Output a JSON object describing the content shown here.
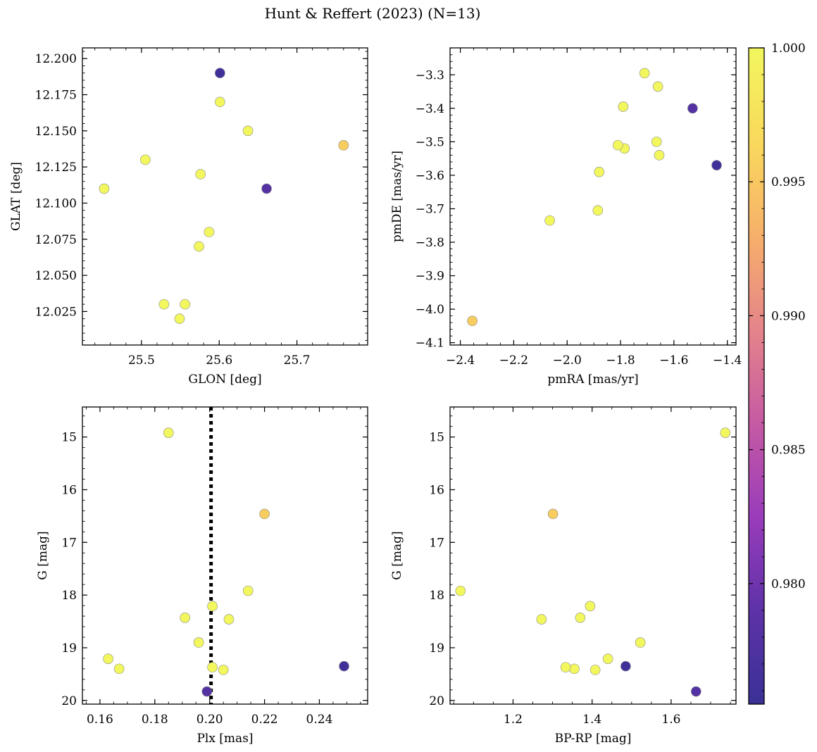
{
  "chart_data": {
    "title": "Hunt & Reffert (2023) (N=13)",
    "type": "scatter",
    "colorbar": {
      "min": 0.9755,
      "max": 1.0,
      "ticks": [
        0.98,
        0.985,
        0.99,
        0.995,
        1.0
      ],
      "tick_labels": [
        "0.980",
        "0.985",
        "0.990",
        "0.995",
        "1.000"
      ],
      "colormap": "plasma",
      "stops": [
        "#3a3196",
        "#5e32a8",
        "#9a3cbb",
        "#c65aa3",
        "#e5848a",
        "#f7b06a",
        "#f9d95c",
        "#f2f75e"
      ]
    },
    "stars": [
      {
        "glon": 25.601,
        "glat": 12.19,
        "pmra": -1.44,
        "pmde": -3.57,
        "plx": 0.249,
        "g": 19.35,
        "bprp": 1.485,
        "prob": 0.976
      },
      {
        "glon": 25.661,
        "glat": 12.11,
        "pmra": -1.53,
        "pmde": -3.4,
        "plx": 0.199,
        "g": 19.83,
        "bprp": 1.663,
        "prob": 0.978
      },
      {
        "glon": 25.76,
        "glat": 12.14,
        "pmra": -2.355,
        "pmde": -4.035,
        "plx": 0.22,
        "g": 16.46,
        "bprp": 1.301,
        "prob": 0.9955
      },
      {
        "glon": 25.601,
        "glat": 12.17,
        "pmra": -1.71,
        "pmde": -3.295,
        "plx": 0.185,
        "g": 14.92,
        "bprp": 1.737,
        "prob": 1.0
      },
      {
        "glon": 25.637,
        "glat": 12.15,
        "pmra": -1.66,
        "pmde": -3.335,
        "plx": 0.214,
        "g": 17.92,
        "bprp": 1.067,
        "prob": 1.0
      },
      {
        "glon": 25.452,
        "glat": 12.11,
        "pmra": -2.065,
        "pmde": -3.735,
        "plx": 0.163,
        "g": 19.21,
        "bprp": 1.44,
        "prob": 1.0
      },
      {
        "glon": 25.505,
        "glat": 12.13,
        "pmra": -1.79,
        "pmde": -3.395,
        "plx": 0.191,
        "g": 18.43,
        "bprp": 1.37,
        "prob": 1.0
      },
      {
        "glon": 25.576,
        "glat": 12.12,
        "pmra": -1.88,
        "pmde": -3.59,
        "plx": 0.207,
        "g": 18.46,
        "bprp": 1.272,
        "prob": 1.0
      },
      {
        "glon": 25.587,
        "glat": 12.08,
        "pmra": -1.665,
        "pmde": -3.5,
        "plx": 0.196,
        "g": 18.9,
        "bprp": 1.522,
        "prob": 1.0
      },
      {
        "glon": 25.574,
        "glat": 12.07,
        "pmra": -1.655,
        "pmde": -3.54,
        "plx": 0.201,
        "g": 18.21,
        "bprp": 1.395,
        "prob": 1.0
      },
      {
        "glon": 25.529,
        "glat": 12.03,
        "pmra": -1.885,
        "pmde": -3.705,
        "plx": 0.167,
        "g": 19.4,
        "bprp": 1.355,
        "prob": 1.0
      },
      {
        "glon": 25.556,
        "glat": 12.03,
        "pmra": -1.785,
        "pmde": -3.52,
        "plx": 0.201,
        "g": 19.37,
        "bprp": 1.333,
        "prob": 1.0
      },
      {
        "glon": 25.549,
        "glat": 12.02,
        "pmra": -1.81,
        "pmde": -3.51,
        "plx": 0.205,
        "g": 19.42,
        "bprp": 1.408,
        "prob": 1.0
      }
    ],
    "panels": [
      {
        "id": "glon-glat",
        "xkey": "glon",
        "ykey": "glat",
        "xlabel": "GLON [deg]",
        "ylabel": "GLAT [deg]",
        "xlim": [
          25.424,
          25.791
        ],
        "ylim": [
          12.0018,
          12.2074
        ],
        "invert_y": false,
        "xticks": [
          25.5,
          25.6,
          25.7
        ],
        "xtick_labels": [
          "25.5",
          "25.6",
          "25.7"
        ],
        "xminor": 0.02,
        "yticks": [
          12.025,
          12.05,
          12.075,
          12.1,
          12.125,
          12.15,
          12.175,
          12.2
        ],
        "ytick_labels": [
          "12.025",
          "12.050",
          "12.075",
          "12.100",
          "12.125",
          "12.150",
          "12.175",
          "12.200"
        ],
        "yminor": 0.005
      },
      {
        "id": "pmra-pmde",
        "xkey": "pmra",
        "ykey": "pmde",
        "xlabel": "pmRA [mas/yr]",
        "ylabel": "pmDE [mas/yr]",
        "xlim": [
          -2.4385,
          -1.3675
        ],
        "ylim": [
          -4.107,
          -3.2195
        ],
        "invert_y": false,
        "xticks": [
          -2.4,
          -2.2,
          -2.0,
          -1.8,
          -1.6,
          -1.4
        ],
        "xtick_labels": [
          "−2.4",
          "−2.2",
          "−2.0",
          "−1.8",
          "−1.6",
          "−1.4"
        ],
        "xminor": 0.05,
        "yticks": [
          -4.1,
          -4.0,
          -3.9,
          -3.8,
          -3.7,
          -3.6,
          -3.5,
          -3.4,
          -3.3
        ],
        "ytick_labels": [
          "−4.1",
          "−4.0",
          "−3.9",
          "−3.8",
          "−3.7",
          "−3.6",
          "−3.5",
          "−3.4",
          "−3.3"
        ],
        "yminor": 0.02
      },
      {
        "id": "plx-g",
        "xkey": "plx",
        "ykey": "g",
        "xlabel": "Plx [mas]",
        "ylabel": "G [mag]",
        "xlim": [
          0.1536,
          0.2576
        ],
        "ylim": [
          14.43,
          20.07
        ],
        "invert_y": true,
        "vline": 0.2005,
        "xticks": [
          0.16,
          0.18,
          0.2,
          0.22,
          0.24
        ],
        "xtick_labels": [
          "0.16",
          "0.18",
          "0.20",
          "0.22",
          "0.24"
        ],
        "xminor": 0.005,
        "yticks": [
          15,
          16,
          17,
          18,
          19,
          20
        ],
        "ytick_labels": [
          "15",
          "16",
          "17",
          "18",
          "19",
          "20"
        ],
        "yminor": 0.2
      },
      {
        "id": "bprp-g",
        "xkey": "bprp",
        "ykey": "g",
        "xlabel": "BP-RP [mag]",
        "ylabel": "G [mag]",
        "xlim": [
          1.0406,
          1.7641
        ],
        "ylim": [
          14.43,
          20.07
        ],
        "invert_y": true,
        "xticks": [
          1.2,
          1.4,
          1.6
        ],
        "xtick_labels": [
          "1.2",
          "1.4",
          "1.6"
        ],
        "xminor": 0.05,
        "yticks": [
          15,
          16,
          17,
          18,
          19,
          20
        ],
        "ytick_labels": [
          "15",
          "16",
          "17",
          "18",
          "19",
          "20"
        ],
        "yminor": 0.2
      }
    ]
  }
}
